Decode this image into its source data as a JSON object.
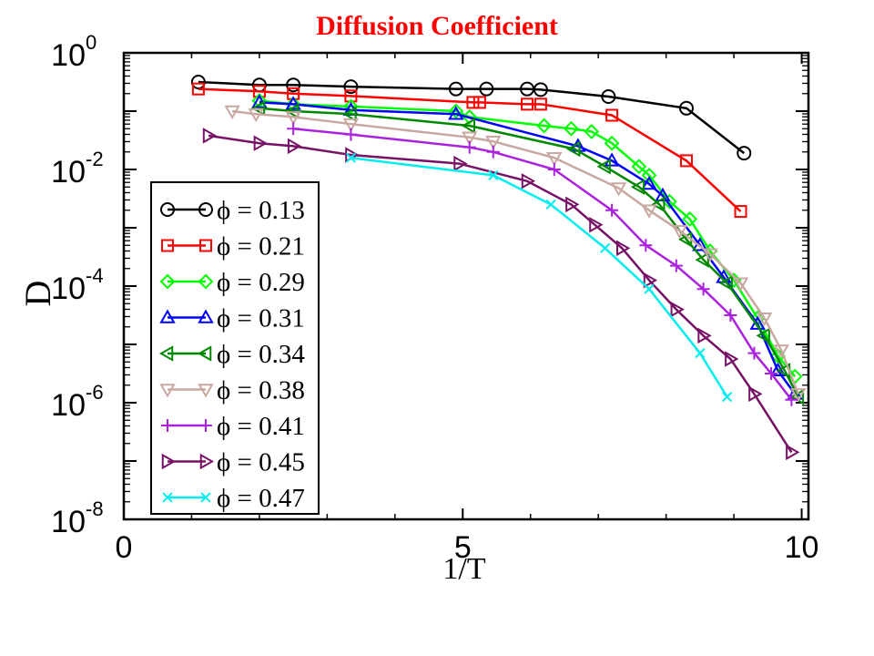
{
  "page_title": "Diffusion Coefficient",
  "chart_data": {
    "type": "line",
    "title": "Diffusion Coefficient",
    "xlabel": "1/T",
    "ylabel": "D",
    "xlim": [
      0,
      10.1
    ],
    "ylim_log10": [
      -8,
      0
    ],
    "yscale": "log",
    "x_ticks": [
      0,
      5,
      10
    ],
    "x_tick_labels": [
      "0",
      "5",
      "10"
    ],
    "y_ticks": [
      {
        "base": "10",
        "exp": "0"
      },
      {
        "base": "10",
        "exp": "-2"
      },
      {
        "base": "10",
        "exp": "-4"
      },
      {
        "base": "10",
        "exp": "-6"
      },
      {
        "base": "10",
        "exp": "-8"
      }
    ],
    "grid": false,
    "legend_position": "lower-left",
    "series": [
      {
        "name": "ϕ = 0.13",
        "color": "#000000",
        "marker": "circle",
        "x": [
          1.1,
          2.0,
          2.5,
          3.35,
          4.9,
          5.35,
          5.95,
          6.15,
          7.15,
          8.3,
          9.15
        ],
        "logy": [
          -0.5,
          -0.55,
          -0.55,
          -0.58,
          -0.62,
          -0.62,
          -0.62,
          -0.63,
          -0.75,
          -0.95,
          -1.72
        ]
      },
      {
        "name": "ϕ = 0.21",
        "color": "#ff0000",
        "marker": "square",
        "x": [
          1.1,
          2.0,
          2.5,
          3.35,
          5.15,
          5.25,
          5.95,
          6.15,
          7.2,
          8.3,
          9.1
        ],
        "logy": [
          -0.62,
          -0.66,
          -0.7,
          -0.74,
          -0.85,
          -0.85,
          -0.88,
          -0.88,
          -1.07,
          -1.85,
          -2.72
        ]
      },
      {
        "name": "ϕ = 0.29",
        "color": "#00ff00",
        "marker": "diamond",
        "x": [
          2.0,
          2.5,
          3.35,
          4.9,
          5.1,
          6.2,
          6.6,
          6.9,
          7.2,
          7.6,
          7.75,
          8.05,
          8.35,
          8.65,
          9.0,
          9.35,
          9.65,
          9.9
        ],
        "logy": [
          -0.82,
          -0.88,
          -0.92,
          -1.0,
          -1.1,
          -1.25,
          -1.3,
          -1.35,
          -1.55,
          -1.95,
          -2.1,
          -2.55,
          -2.85,
          -3.4,
          -3.9,
          -4.55,
          -5.2,
          -5.55
        ]
      },
      {
        "name": "ϕ = 0.31",
        "color": "#0000ff",
        "marker": "triangle-up",
        "x": [
          2.0,
          2.5,
          3.35,
          4.9,
          6.7,
          7.2,
          7.75,
          7.95,
          8.5,
          8.85,
          9.35,
          9.65,
          9.9
        ],
        "logy": [
          -0.85,
          -0.88,
          -0.98,
          -1.05,
          -1.6,
          -1.85,
          -2.25,
          -2.45,
          -3.3,
          -3.85,
          -4.65,
          -5.45,
          -5.85
        ]
      },
      {
        "name": "ϕ = 0.34",
        "color": "#008800",
        "marker": "triangle-left",
        "x": [
          2.0,
          2.5,
          3.35,
          5.1,
          6.65,
          7.1,
          7.6,
          7.9,
          8.3,
          8.55,
          8.9,
          9.45,
          9.75,
          9.95
        ],
        "logy": [
          -0.95,
          -1.0,
          -1.05,
          -1.25,
          -1.65,
          -1.95,
          -2.3,
          -2.6,
          -3.2,
          -3.55,
          -3.95,
          -4.85,
          -5.45,
          -5.9
        ]
      },
      {
        "name": "ϕ = 0.38",
        "color": "#c8a8a0",
        "marker": "triangle-down",
        "x": [
          1.6,
          1.95,
          2.5,
          3.35,
          5.1,
          5.45,
          6.35,
          7.3,
          7.75,
          8.2,
          8.65,
          9.1,
          9.45,
          9.7,
          9.95
        ],
        "logy": [
          -1.0,
          -1.05,
          -1.1,
          -1.22,
          -1.45,
          -1.52,
          -1.8,
          -2.32,
          -2.7,
          -3.05,
          -3.45,
          -3.95,
          -4.55,
          -5.1,
          -5.85
        ]
      },
      {
        "name": "ϕ = 0.41",
        "color": "#aa22dd",
        "marker": "plus",
        "x": [
          2.5,
          3.35,
          5.1,
          5.45,
          6.35,
          7.2,
          7.7,
          8.15,
          8.55,
          8.95,
          9.3,
          9.55,
          9.85
        ],
        "logy": [
          -1.3,
          -1.4,
          -1.62,
          -1.7,
          -2.0,
          -2.7,
          -3.3,
          -3.65,
          -4.05,
          -4.5,
          -5.15,
          -5.5,
          -5.95
        ]
      },
      {
        "name": "ϕ = 0.45",
        "color": "#771166",
        "marker": "triangle-right",
        "x": [
          1.25,
          2.0,
          2.5,
          3.35,
          4.95,
          5.95,
          6.6,
          6.95,
          7.35,
          7.75,
          8.15,
          8.55,
          8.95,
          9.3,
          9.85
        ],
        "logy": [
          -1.42,
          -1.55,
          -1.6,
          -1.75,
          -1.9,
          -2.2,
          -2.6,
          -2.95,
          -3.35,
          -3.9,
          -4.4,
          -4.85,
          -5.25,
          -5.85,
          -6.85
        ]
      },
      {
        "name": "ϕ = 0.47",
        "color": "#00eeee",
        "marker": "x",
        "x": [
          3.35,
          5.45,
          6.3,
          7.1,
          7.75,
          8.5,
          8.9
        ],
        "logy": [
          -1.8,
          -2.1,
          -2.6,
          -3.35,
          -4.05,
          -5.15,
          -5.9
        ]
      }
    ]
  }
}
